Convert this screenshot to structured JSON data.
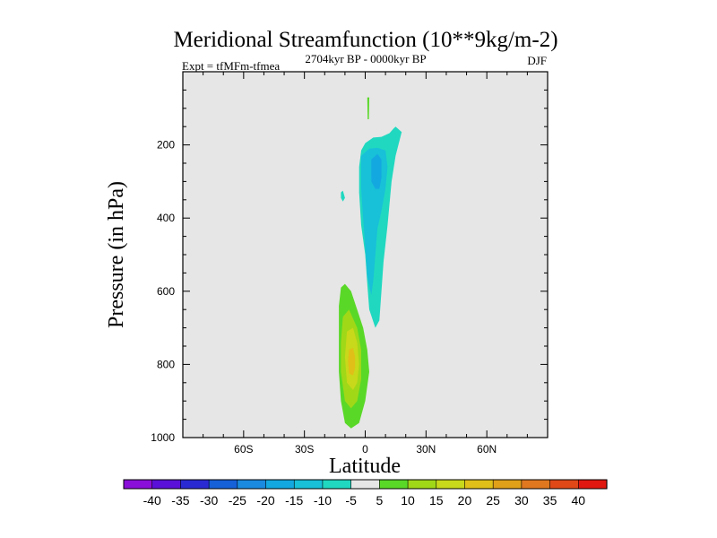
{
  "chart_data": {
    "type": "contour",
    "title": "Meridional Streamfunction (10**9kg/m-2)",
    "subtitle_left": "Expt = tfMFm-tfmea",
    "subtitle_center": "2704kyr BP - 0000kyr BP",
    "subtitle_right": "DJF",
    "xlabel": "Latitude",
    "ylabel": "Pressure (in hPa)",
    "xlim": [
      -90,
      90
    ],
    "ylim": [
      1000,
      0
    ],
    "x_ticks": [
      {
        "value": -60,
        "label": "60S"
      },
      {
        "value": -30,
        "label": "30S"
      },
      {
        "value": 0,
        "label": "0"
      },
      {
        "value": 30,
        "label": "30N"
      },
      {
        "value": 60,
        "label": "60N"
      }
    ],
    "y_ticks": [
      {
        "value": 200,
        "label": "200"
      },
      {
        "value": 400,
        "label": "400"
      },
      {
        "value": 600,
        "label": "600"
      },
      {
        "value": 800,
        "label": "800"
      },
      {
        "value": 1000,
        "label": "1000"
      }
    ],
    "background_color": "#e6e6e6",
    "colorbar": {
      "labels": [
        "-40",
        "-35",
        "-30",
        "-25",
        "-20",
        "-15",
        "-10",
        "-5",
        "5",
        "10",
        "15",
        "20",
        "25",
        "30",
        "35",
        "40"
      ],
      "colors": [
        "#8a0fd8",
        "#5a10d8",
        "#2a2ad2",
        "#1660d8",
        "#1a8ae0",
        "#14a8e0",
        "#18c0d8",
        "#20d8c0",
        "#e6e6e6",
        "#5ad828",
        "#a0d818",
        "#c8d81a",
        "#e0c018",
        "#e0a018",
        "#e07820",
        "#e04818",
        "#e01810"
      ]
    },
    "regions": [
      {
        "name": "negative-cell-outer",
        "value": "-5",
        "color": "#20d8c0",
        "polygon": [
          [
            -2,
            215
          ],
          [
            0,
            195
          ],
          [
            4,
            180
          ],
          [
            8,
            178
          ],
          [
            12,
            168
          ],
          [
            14,
            155
          ],
          [
            15,
            150
          ],
          [
            18,
            165
          ],
          [
            15,
            230
          ],
          [
            13,
            300
          ],
          [
            11,
            420
          ],
          [
            9,
            520
          ],
          [
            8,
            600
          ],
          [
            7,
            680
          ],
          [
            5,
            700
          ],
          [
            2,
            650
          ],
          [
            1,
            580
          ],
          [
            0,
            500
          ],
          [
            -2,
            420
          ],
          [
            -3,
            330
          ],
          [
            -3,
            260
          ]
        ]
      },
      {
        "name": "negative-cell-middle",
        "value": "-10",
        "color": "#18c0d8",
        "polygon": [
          [
            -2,
            230
          ],
          [
            2,
            210
          ],
          [
            6,
            208
          ],
          [
            10,
            215
          ],
          [
            11,
            260
          ],
          [
            10,
            320
          ],
          [
            8,
            380
          ],
          [
            6,
            430
          ],
          [
            5,
            500
          ],
          [
            4,
            570
          ],
          [
            3,
            610
          ],
          [
            1,
            560
          ],
          [
            0,
            480
          ],
          [
            -1,
            400
          ],
          [
            -2,
            320
          ]
        ]
      },
      {
        "name": "negative-cell-core",
        "value": "-15",
        "color": "#14a8e0",
        "polygon": [
          [
            3,
            240
          ],
          [
            6,
            225
          ],
          [
            8,
            240
          ],
          [
            8,
            290
          ],
          [
            7,
            320
          ],
          [
            5,
            320
          ],
          [
            3,
            300
          ]
        ]
      },
      {
        "name": "positive-cell-outer",
        "value": "5",
        "color": "#5ad828",
        "polygon": [
          [
            -12,
            590
          ],
          [
            -10,
            580
          ],
          [
            -7,
            600
          ],
          [
            -4,
            650
          ],
          [
            -1,
            700
          ],
          [
            1,
            760
          ],
          [
            2,
            820
          ],
          [
            0,
            900
          ],
          [
            -3,
            960
          ],
          [
            -7,
            975
          ],
          [
            -10,
            960
          ],
          [
            -12,
            900
          ],
          [
            -13,
            820
          ],
          [
            -13,
            720
          ],
          [
            -13,
            640
          ]
        ]
      },
      {
        "name": "positive-cell-middle",
        "value": "10",
        "color": "#a0d818",
        "polygon": [
          [
            -11,
            670
          ],
          [
            -8,
            650
          ],
          [
            -4,
            700
          ],
          [
            -2,
            760
          ],
          [
            -2,
            840
          ],
          [
            -4,
            900
          ],
          [
            -7,
            920
          ],
          [
            -10,
            900
          ],
          [
            -12,
            820
          ],
          [
            -12,
            740
          ]
        ]
      },
      {
        "name": "positive-cell-inner",
        "value": "15",
        "color": "#c8d81a",
        "polygon": [
          [
            -9,
            710
          ],
          [
            -6,
            700
          ],
          [
            -4,
            740
          ],
          [
            -3,
            800
          ],
          [
            -4,
            850
          ],
          [
            -6,
            870
          ],
          [
            -9,
            850
          ],
          [
            -10,
            780
          ]
        ]
      },
      {
        "name": "positive-cell-core",
        "value": "20",
        "color": "#e0c018",
        "polygon": [
          [
            -8,
            760
          ],
          [
            -6,
            755
          ],
          [
            -5,
            780
          ],
          [
            -5,
            810
          ],
          [
            -6,
            830
          ],
          [
            -8,
            825
          ],
          [
            -8.5,
            790
          ]
        ]
      },
      {
        "name": "stratosphere-streak",
        "value": "5",
        "color": "#5ad828",
        "polygon": [
          [
            1,
            70
          ],
          [
            2,
            70
          ],
          [
            1.8,
            130
          ],
          [
            1.2,
            130
          ]
        ]
      },
      {
        "name": "isolated-negative-patch",
        "value": "-5",
        "color": "#20d8c0",
        "polygon": [
          [
            -12,
            330
          ],
          [
            -11,
            325
          ],
          [
            -10,
            345
          ],
          [
            -11,
            355
          ],
          [
            -12,
            345
          ]
        ]
      }
    ]
  }
}
